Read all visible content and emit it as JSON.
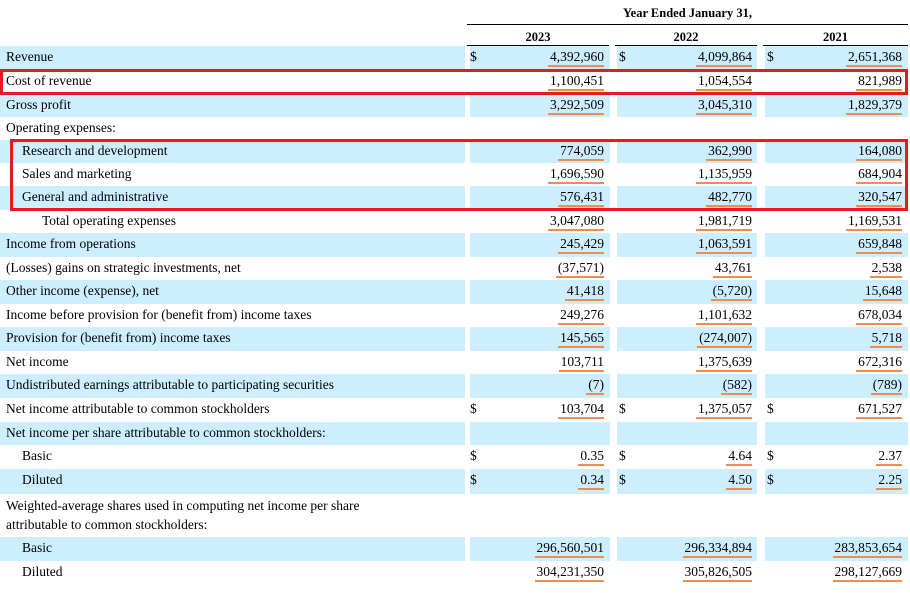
{
  "header": {
    "period_title": "Year Ended January 31,",
    "years": [
      "2023",
      "2022",
      "2021"
    ]
  },
  "rows": [
    {
      "label": "Revenue",
      "indent": 0,
      "dollar": true,
      "values": [
        "4,392,960",
        "4,099,864",
        "2,651,368"
      ],
      "bg": true
    },
    {
      "label": "Cost of revenue",
      "indent": 0,
      "dollar": false,
      "values": [
        "1,100,451",
        "1,054,554",
        "821,989"
      ],
      "bg": false
    },
    {
      "label": "Gross profit",
      "indent": 0,
      "dollar": false,
      "values": [
        "3,292,509",
        "3,045,310",
        "1,829,379"
      ],
      "bg": true
    },
    {
      "label": "Operating expenses:",
      "indent": 0,
      "dollar": false,
      "values": [
        "",
        "",
        ""
      ],
      "bg": false
    },
    {
      "label": "Research and development",
      "indent": 1,
      "dollar": false,
      "values": [
        "774,059",
        "362,990",
        "164,080"
      ],
      "bg": true
    },
    {
      "label": "Sales and marketing",
      "indent": 1,
      "dollar": false,
      "values": [
        "1,696,590",
        "1,135,959",
        "684,904"
      ],
      "bg": false
    },
    {
      "label": "General and administrative",
      "indent": 1,
      "dollar": false,
      "values": [
        "576,431",
        "482,770",
        "320,547"
      ],
      "bg": true
    },
    {
      "label": "Total operating expenses",
      "indent": 2,
      "dollar": false,
      "values": [
        "3,047,080",
        "1,981,719",
        "1,169,531"
      ],
      "bg": false
    },
    {
      "label": "Income from operations",
      "indent": 0,
      "dollar": false,
      "values": [
        "245,429",
        "1,063,591",
        "659,848"
      ],
      "bg": true
    },
    {
      "label": "(Losses) gains on strategic investments, net",
      "indent": 0,
      "dollar": false,
      "values": [
        "(37,571)",
        "43,761",
        "2,538"
      ],
      "bg": false
    },
    {
      "label": "Other income (expense), net",
      "indent": 0,
      "dollar": false,
      "values": [
        "41,418",
        "(5,720)",
        "15,648"
      ],
      "bg": true
    },
    {
      "label": "Income before provision for (benefit from) income taxes",
      "indent": 0,
      "dollar": false,
      "values": [
        "249,276",
        "1,101,632",
        "678,034"
      ],
      "bg": false
    },
    {
      "label": "Provision for (benefit from) income taxes",
      "indent": 0,
      "dollar": false,
      "values": [
        "145,565",
        "(274,007)",
        "5,718"
      ],
      "bg": true
    },
    {
      "label": "Net income",
      "indent": 0,
      "dollar": false,
      "values": [
        "103,711",
        "1,375,639",
        "672,316"
      ],
      "bg": false
    },
    {
      "label": "Undistributed earnings attributable to participating securities",
      "indent": 0,
      "dollar": false,
      "values": [
        "(7)",
        "(582)",
        "(789)"
      ],
      "bg": true
    },
    {
      "label": "Net income attributable to common stockholders",
      "indent": 0,
      "dollar": true,
      "values": [
        "103,704",
        "1,375,057",
        "671,527"
      ],
      "bg": false
    },
    {
      "label": "Net income per share attributable to common stockholders:",
      "indent": 0,
      "dollar": false,
      "values": [
        "",
        "",
        ""
      ],
      "bg": true
    },
    {
      "label": "Basic",
      "indent": 1,
      "dollar": true,
      "values": [
        "0.35",
        "4.64",
        "2.37"
      ],
      "bg": false
    },
    {
      "label": "Diluted",
      "indent": 1,
      "dollar": true,
      "values": [
        "0.34",
        "4.50",
        "2.25"
      ],
      "bg": true
    },
    {
      "label": "Weighted-average shares used in computing net income per share",
      "label2": "attributable to common stockholders:",
      "indent": 0,
      "dollar": false,
      "values": [
        "",
        "",
        ""
      ],
      "bg": false
    },
    {
      "label": "Basic",
      "indent": 1,
      "dollar": false,
      "values": [
        "296,560,501",
        "296,334,894",
        "283,853,654"
      ],
      "bg": true
    },
    {
      "label": "Diluted",
      "indent": 1,
      "dollar": false,
      "values": [
        "304,231,350",
        "305,826,505",
        "298,127,669"
      ],
      "bg": false
    }
  ],
  "symbols": {
    "dollar": "$"
  },
  "colors": {
    "row_bg": "#cceeff",
    "highlight_box": "#e31c23",
    "value_underline": "#f28b50"
  }
}
